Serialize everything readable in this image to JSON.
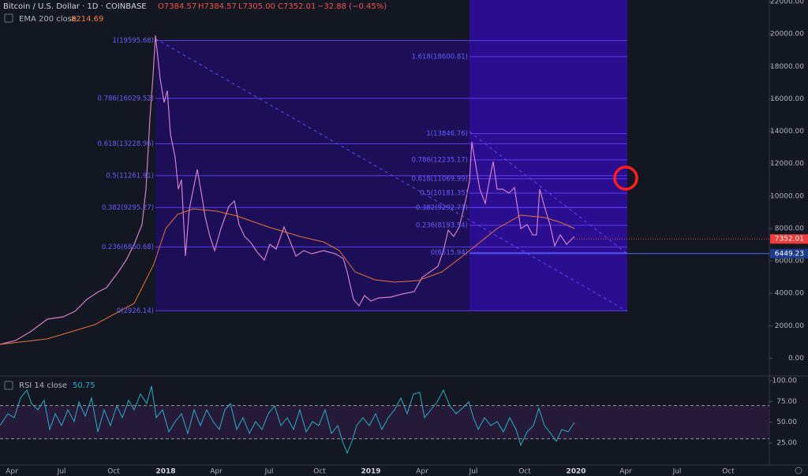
{
  "header": {
    "title": "Bitcoin / U.S. Dollar · 1D · COINBASE",
    "ohlc": [
      "O7384.57",
      "H7384.57",
      "L7305.00",
      "C7352.01",
      "−32.88 (−0.45%)"
    ],
    "ema_title": "EMA 200 close",
    "ema_value": "8214.69"
  },
  "price_axis": {
    "ylim": [
      -1000,
      22000
    ],
    "yticks": [
      {
        "value": 0,
        "label": "0.00"
      },
      {
        "value": 2000,
        "label": "2000.00"
      },
      {
        "value": 4000,
        "label": "4000.00"
      },
      {
        "value": 6000,
        "label": "6000.00"
      },
      {
        "value": 8000,
        "label": "8000.00"
      },
      {
        "value": 10000,
        "label": "10000.00"
      },
      {
        "value": 12000,
        "label": "12000.00"
      },
      {
        "value": 14000,
        "label": "14000.00"
      },
      {
        "value": 16000,
        "label": "16000.00"
      },
      {
        "value": 18000,
        "label": "18000.00"
      },
      {
        "value": 20000,
        "label": "20000.00"
      },
      {
        "value": 22000,
        "label": "22000.00"
      }
    ],
    "last_price": {
      "value": 7352.01,
      "label": "7352.01"
    },
    "level": {
      "value": 6449.23,
      "label": "6449.23"
    }
  },
  "fib_left": [
    {
      "price": 19595.68,
      "label": "1(19595.68)"
    },
    {
      "price": 16029.52,
      "label": "0.786(16029.52)"
    },
    {
      "price": 13228.96,
      "label": "0.618(13228.96)"
    },
    {
      "price": 11261.91,
      "label": "0.5(11261.91)"
    },
    {
      "price": 9295.27,
      "label": "0.382(9295.27)"
    },
    {
      "price": 6860.68,
      "label": "0.236(6860.68)"
    },
    {
      "price": 2926.14,
      "label": "0(2926.14)"
    }
  ],
  "fib_right": [
    {
      "price": 18600.81,
      "label": "1.618(18600.81)"
    },
    {
      "price": 13846.76,
      "label": "1(13846.76)"
    },
    {
      "price": 12235.17,
      "label": "0.786(12235.17)"
    },
    {
      "price": 11069.99,
      "label": "0.618(11069.99)"
    },
    {
      "price": 10181.35,
      "label": "0.5(10181.35)"
    },
    {
      "price": 9292.71,
      "label": "0.382(9292.71)"
    },
    {
      "price": 8193.54,
      "label": "0.236(8193.54)"
    },
    {
      "price": 6515.94,
      "label": "0(6515.94)"
    }
  ],
  "time_axis": [
    "Apr",
    "Jul",
    "Oct",
    "2018",
    "Apr",
    "Jul",
    "Oct",
    "2019",
    "Apr",
    "Jul",
    "Oct",
    "2020",
    "Apr",
    "Jul",
    "Oct"
  ],
  "rsi": {
    "title": "RSI 14 close",
    "value": "50.75",
    "ylim": [
      0,
      100
    ],
    "yticks": [
      {
        "value": 25,
        "label": "25.00"
      },
      {
        "value": 50,
        "label": "50.00"
      },
      {
        "value": 75,
        "label": "75.00"
      },
      {
        "value": 100,
        "label": "100.00"
      }
    ],
    "bands": [
      30,
      70
    ]
  }
}
